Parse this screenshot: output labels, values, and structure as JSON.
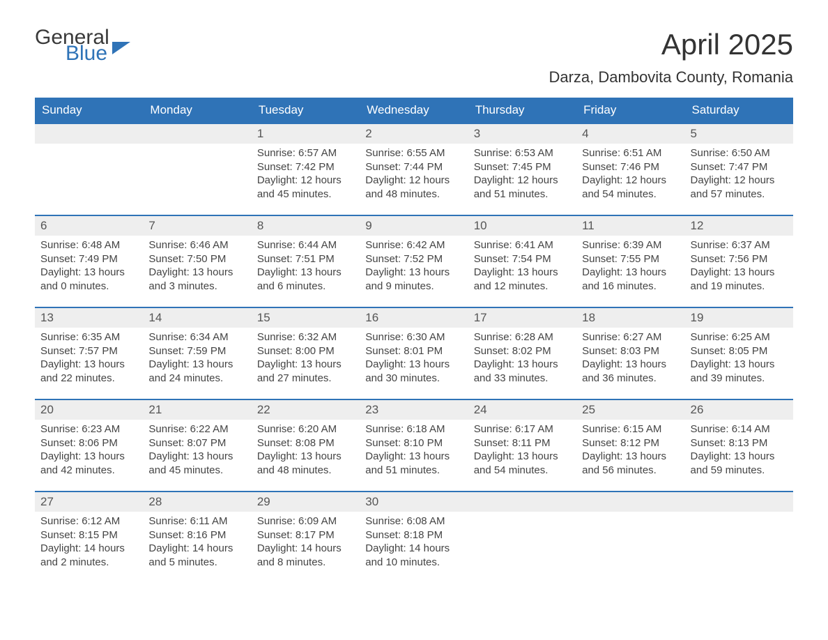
{
  "logo": {
    "line1": "General",
    "line2": "Blue"
  },
  "title": "April 2025",
  "location": "Darza, Dambovita County, Romania",
  "header_bg": "#2f73b7",
  "header_fg": "#ffffff",
  "daynum_bg": "#eeeeee",
  "week_border": "#2f73b7",
  "text_color": "#444444",
  "weekdays": [
    "Sunday",
    "Monday",
    "Tuesday",
    "Wednesday",
    "Thursday",
    "Friday",
    "Saturday"
  ],
  "weeks": [
    {
      "days": [
        {
          "num": "",
          "sunrise": "",
          "sunset": "",
          "daylight": ""
        },
        {
          "num": "",
          "sunrise": "",
          "sunset": "",
          "daylight": ""
        },
        {
          "num": "1",
          "sunrise": "Sunrise: 6:57 AM",
          "sunset": "Sunset: 7:42 PM",
          "daylight": "Daylight: 12 hours and 45 minutes."
        },
        {
          "num": "2",
          "sunrise": "Sunrise: 6:55 AM",
          "sunset": "Sunset: 7:44 PM",
          "daylight": "Daylight: 12 hours and 48 minutes."
        },
        {
          "num": "3",
          "sunrise": "Sunrise: 6:53 AM",
          "sunset": "Sunset: 7:45 PM",
          "daylight": "Daylight: 12 hours and 51 minutes."
        },
        {
          "num": "4",
          "sunrise": "Sunrise: 6:51 AM",
          "sunset": "Sunset: 7:46 PM",
          "daylight": "Daylight: 12 hours and 54 minutes."
        },
        {
          "num": "5",
          "sunrise": "Sunrise: 6:50 AM",
          "sunset": "Sunset: 7:47 PM",
          "daylight": "Daylight: 12 hours and 57 minutes."
        }
      ]
    },
    {
      "days": [
        {
          "num": "6",
          "sunrise": "Sunrise: 6:48 AM",
          "sunset": "Sunset: 7:49 PM",
          "daylight": "Daylight: 13 hours and 0 minutes."
        },
        {
          "num": "7",
          "sunrise": "Sunrise: 6:46 AM",
          "sunset": "Sunset: 7:50 PM",
          "daylight": "Daylight: 13 hours and 3 minutes."
        },
        {
          "num": "8",
          "sunrise": "Sunrise: 6:44 AM",
          "sunset": "Sunset: 7:51 PM",
          "daylight": "Daylight: 13 hours and 6 minutes."
        },
        {
          "num": "9",
          "sunrise": "Sunrise: 6:42 AM",
          "sunset": "Sunset: 7:52 PM",
          "daylight": "Daylight: 13 hours and 9 minutes."
        },
        {
          "num": "10",
          "sunrise": "Sunrise: 6:41 AM",
          "sunset": "Sunset: 7:54 PM",
          "daylight": "Daylight: 13 hours and 12 minutes."
        },
        {
          "num": "11",
          "sunrise": "Sunrise: 6:39 AM",
          "sunset": "Sunset: 7:55 PM",
          "daylight": "Daylight: 13 hours and 16 minutes."
        },
        {
          "num": "12",
          "sunrise": "Sunrise: 6:37 AM",
          "sunset": "Sunset: 7:56 PM",
          "daylight": "Daylight: 13 hours and 19 minutes."
        }
      ]
    },
    {
      "days": [
        {
          "num": "13",
          "sunrise": "Sunrise: 6:35 AM",
          "sunset": "Sunset: 7:57 PM",
          "daylight": "Daylight: 13 hours and 22 minutes."
        },
        {
          "num": "14",
          "sunrise": "Sunrise: 6:34 AM",
          "sunset": "Sunset: 7:59 PM",
          "daylight": "Daylight: 13 hours and 24 minutes."
        },
        {
          "num": "15",
          "sunrise": "Sunrise: 6:32 AM",
          "sunset": "Sunset: 8:00 PM",
          "daylight": "Daylight: 13 hours and 27 minutes."
        },
        {
          "num": "16",
          "sunrise": "Sunrise: 6:30 AM",
          "sunset": "Sunset: 8:01 PM",
          "daylight": "Daylight: 13 hours and 30 minutes."
        },
        {
          "num": "17",
          "sunrise": "Sunrise: 6:28 AM",
          "sunset": "Sunset: 8:02 PM",
          "daylight": "Daylight: 13 hours and 33 minutes."
        },
        {
          "num": "18",
          "sunrise": "Sunrise: 6:27 AM",
          "sunset": "Sunset: 8:03 PM",
          "daylight": "Daylight: 13 hours and 36 minutes."
        },
        {
          "num": "19",
          "sunrise": "Sunrise: 6:25 AM",
          "sunset": "Sunset: 8:05 PM",
          "daylight": "Daylight: 13 hours and 39 minutes."
        }
      ]
    },
    {
      "days": [
        {
          "num": "20",
          "sunrise": "Sunrise: 6:23 AM",
          "sunset": "Sunset: 8:06 PM",
          "daylight": "Daylight: 13 hours and 42 minutes."
        },
        {
          "num": "21",
          "sunrise": "Sunrise: 6:22 AM",
          "sunset": "Sunset: 8:07 PM",
          "daylight": "Daylight: 13 hours and 45 minutes."
        },
        {
          "num": "22",
          "sunrise": "Sunrise: 6:20 AM",
          "sunset": "Sunset: 8:08 PM",
          "daylight": "Daylight: 13 hours and 48 minutes."
        },
        {
          "num": "23",
          "sunrise": "Sunrise: 6:18 AM",
          "sunset": "Sunset: 8:10 PM",
          "daylight": "Daylight: 13 hours and 51 minutes."
        },
        {
          "num": "24",
          "sunrise": "Sunrise: 6:17 AM",
          "sunset": "Sunset: 8:11 PM",
          "daylight": "Daylight: 13 hours and 54 minutes."
        },
        {
          "num": "25",
          "sunrise": "Sunrise: 6:15 AM",
          "sunset": "Sunset: 8:12 PM",
          "daylight": "Daylight: 13 hours and 56 minutes."
        },
        {
          "num": "26",
          "sunrise": "Sunrise: 6:14 AM",
          "sunset": "Sunset: 8:13 PM",
          "daylight": "Daylight: 13 hours and 59 minutes."
        }
      ]
    },
    {
      "days": [
        {
          "num": "27",
          "sunrise": "Sunrise: 6:12 AM",
          "sunset": "Sunset: 8:15 PM",
          "daylight": "Daylight: 14 hours and 2 minutes."
        },
        {
          "num": "28",
          "sunrise": "Sunrise: 6:11 AM",
          "sunset": "Sunset: 8:16 PM",
          "daylight": "Daylight: 14 hours and 5 minutes."
        },
        {
          "num": "29",
          "sunrise": "Sunrise: 6:09 AM",
          "sunset": "Sunset: 8:17 PM",
          "daylight": "Daylight: 14 hours and 8 minutes."
        },
        {
          "num": "30",
          "sunrise": "Sunrise: 6:08 AM",
          "sunset": "Sunset: 8:18 PM",
          "daylight": "Daylight: 14 hours and 10 minutes."
        },
        {
          "num": "",
          "sunrise": "",
          "sunset": "",
          "daylight": ""
        },
        {
          "num": "",
          "sunrise": "",
          "sunset": "",
          "daylight": ""
        },
        {
          "num": "",
          "sunrise": "",
          "sunset": "",
          "daylight": ""
        }
      ]
    }
  ]
}
